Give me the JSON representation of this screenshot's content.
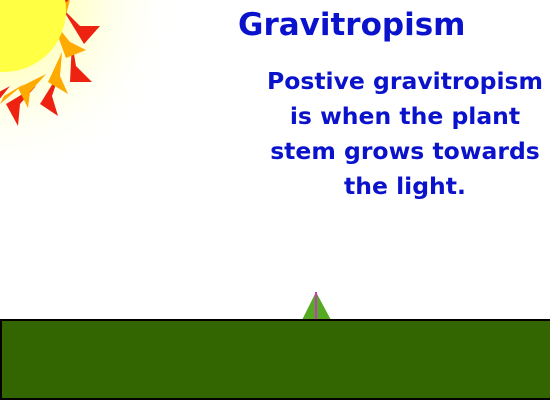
{
  "slide": {
    "title": "Gravitropism",
    "description": "Postive gravitropism\nis when the plant\nstem grows towards\nthe light."
  },
  "colors": {
    "text": "#0b12cc",
    "ground": "#336600",
    "ground_outline": "#000000",
    "sprout": "#55aa22",
    "stem": "#cc33cc",
    "sun_core": "#ffff44",
    "sun_rays_inner": "#ffaa00",
    "sun_rays_outer": "#ee2211",
    "sun_glow": "#ffffcc"
  },
  "icons": {
    "sun": "sun-icon",
    "sprout": "sprout-icon"
  }
}
